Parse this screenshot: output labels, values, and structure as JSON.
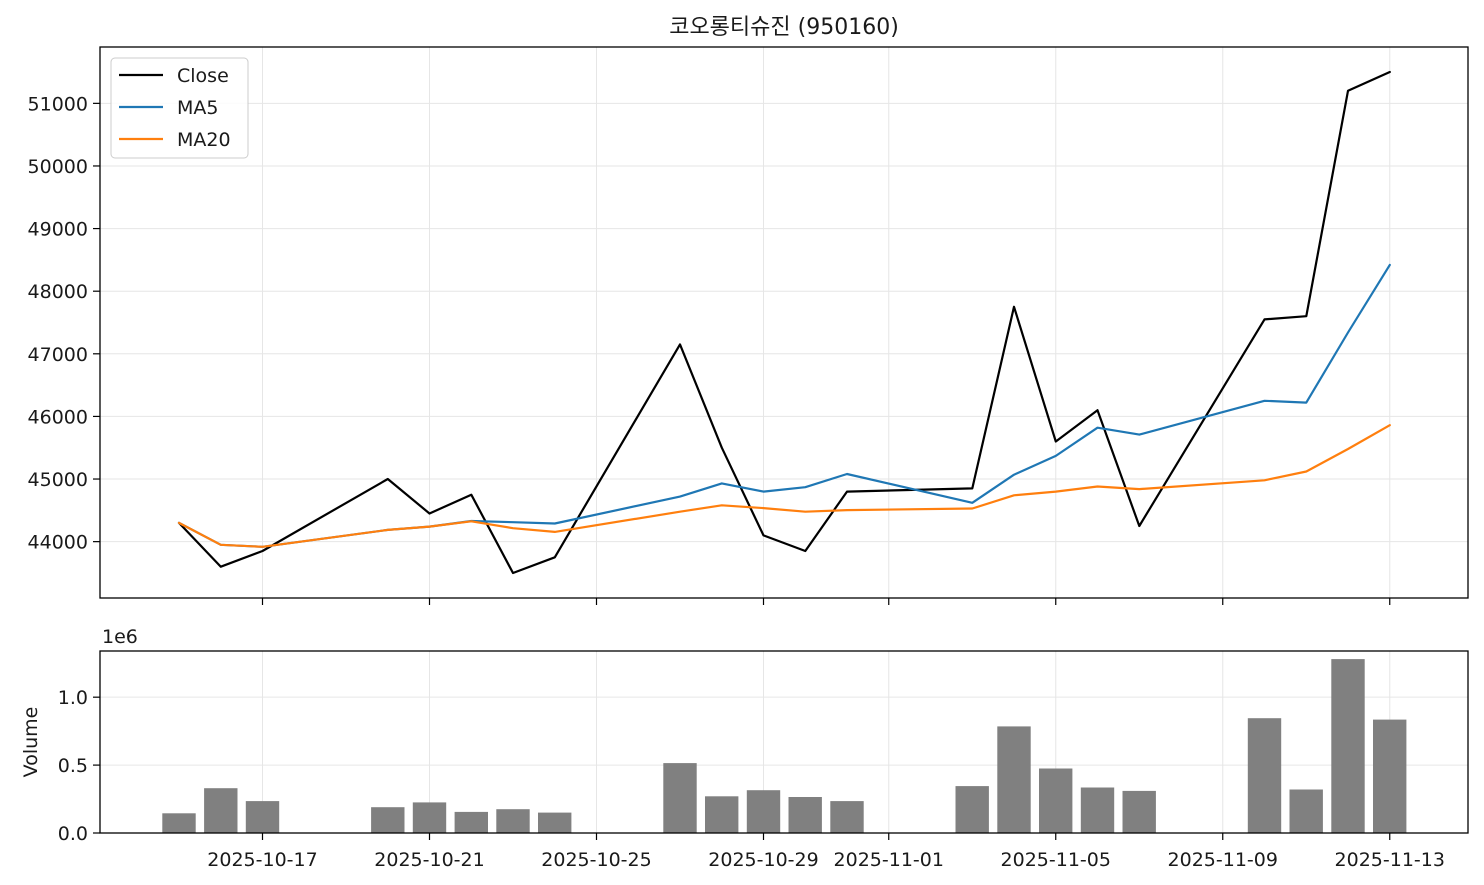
{
  "chart_data": [
    {
      "type": "line",
      "title": "코오롱티슈진 (950160)",
      "xlabel": "",
      "ylabel": "",
      "ylim": [
        43100,
        51900
      ],
      "yticks": [
        44000,
        45000,
        46000,
        47000,
        48000,
        49000,
        50000,
        51000
      ],
      "grid": true,
      "legend": {
        "placement": "top-left",
        "entries": [
          "Close",
          "MA5",
          "MA20"
        ]
      },
      "x": [
        "2025-10-15",
        "2025-10-16",
        "2025-10-17",
        "2025-10-20",
        "2025-10-21",
        "2025-10-22",
        "2025-10-23",
        "2025-10-24",
        "2025-10-27",
        "2025-10-28",
        "2025-10-29",
        "2025-10-30",
        "2025-10-31",
        "2025-11-03",
        "2025-11-04",
        "2025-11-05",
        "2025-11-06",
        "2025-11-07",
        "2025-11-10",
        "2025-11-11",
        "2025-11-12",
        "2025-11-13"
      ],
      "series": [
        {
          "name": "Close",
          "color": "#000000",
          "values": [
            44300,
            43600,
            43850,
            45000,
            44450,
            44750,
            43500,
            43750,
            47150,
            45500,
            44100,
            43850,
            44800,
            44850,
            47750,
            45600,
            46100,
            44250,
            47550,
            47600,
            51200,
            51500
          ]
        },
        {
          "name": "MA5",
          "color": "#1f77b4",
          "values": [
            44300,
            43950,
            43917,
            44188,
            44240,
            44330,
            44310,
            44290,
            44720,
            44930,
            44800,
            44870,
            45080,
            44620,
            45070,
            45370,
            45820,
            45710,
            46250,
            46220,
            47340,
            48420
          ]
        },
        {
          "name": "MA20",
          "color": "#ff7f0e",
          "values": [
            44300,
            43950,
            43917,
            44188,
            44240,
            44325,
            44214,
            44155,
            44478,
            44580,
            44536,
            44479,
            44504,
            44529,
            44740,
            44800,
            44880,
            44840,
            44980,
            45120,
            45480,
            45860
          ]
        }
      ]
    },
    {
      "type": "bar",
      "xlabel": "",
      "ylabel": "Volume",
      "offset_label": "1e6",
      "ylim": [
        0,
        1.34
      ],
      "yticks": [
        "0.0",
        "0.5",
        "1.0"
      ],
      "ytick_values": [
        0,
        0.5,
        1.0
      ],
      "grid": true,
      "color": "#808080",
      "x": [
        "2025-10-15",
        "2025-10-16",
        "2025-10-17",
        "2025-10-20",
        "2025-10-21",
        "2025-10-22",
        "2025-10-23",
        "2025-10-24",
        "2025-10-27",
        "2025-10-28",
        "2025-10-29",
        "2025-10-30",
        "2025-10-31",
        "2025-11-03",
        "2025-11-04",
        "2025-11-05",
        "2025-11-06",
        "2025-11-07",
        "2025-11-10",
        "2025-11-11",
        "2025-11-12",
        "2025-11-13"
      ],
      "values": [
        0.145,
        0.33,
        0.235,
        0.19,
        0.225,
        0.155,
        0.175,
        0.15,
        0.515,
        0.27,
        0.315,
        0.265,
        0.235,
        0.345,
        0.785,
        0.475,
        0.335,
        0.31,
        0.845,
        0.32,
        1.28,
        0.835
      ],
      "xticks": [
        "2025-10-17",
        "2025-10-21",
        "2025-10-25",
        "2025-10-29",
        "2025-11-01",
        "2025-11-05",
        "2025-11-09",
        "2025-11-13"
      ]
    }
  ]
}
